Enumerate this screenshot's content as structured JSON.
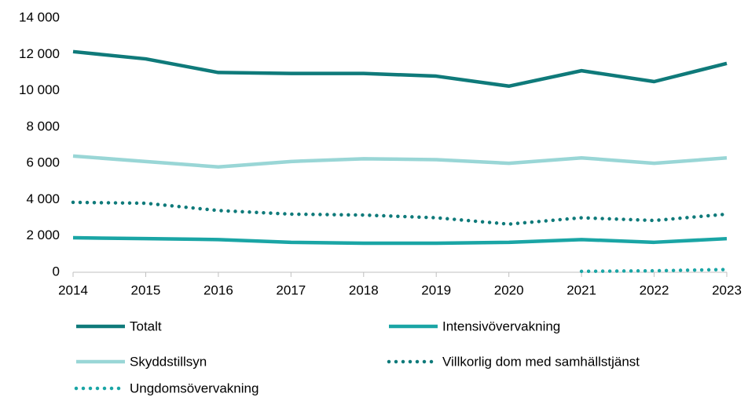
{
  "chart_data": {
    "type": "line",
    "x": [
      2014,
      2015,
      2016,
      2017,
      2018,
      2019,
      2020,
      2021,
      2022,
      2023
    ],
    "xlim": [
      2014,
      2023
    ],
    "xticks": [
      2014,
      2015,
      2016,
      2017,
      2018,
      2019,
      2020,
      2021,
      2022,
      2023
    ],
    "ylim": [
      0,
      14000
    ],
    "yticks": [
      0,
      {
        "value": 2000,
        "label": "2 000"
      },
      {
        "value": 4000,
        "label": "4 000"
      },
      {
        "value": 6000,
        "label": "6 000"
      },
      {
        "value": 8000,
        "label": "8 000"
      },
      {
        "value": 10000,
        "label": "10 000"
      },
      {
        "value": 12000,
        "label": "12 000"
      },
      {
        "value": 14000,
        "label": "14 000"
      }
    ],
    "grid": false,
    "series": [
      {
        "name": "Totalt",
        "color": "#0f7a7a",
        "linestyle": "solid",
        "values": [
          12150,
          11750,
          11000,
          10950,
          10950,
          10800,
          10250,
          11100,
          10500,
          11500
        ]
      },
      {
        "name": "Intensivövervakning",
        "color": "#1aa5a5",
        "linestyle": "solid",
        "values": [
          1900,
          1850,
          1800,
          1650,
          1600,
          1600,
          1650,
          1800,
          1650,
          1850
        ]
      },
      {
        "name": "Skyddstillsyn",
        "color": "#99d6d6",
        "linestyle": "solid",
        "values": [
          6400,
          6100,
          5800,
          6100,
          6250,
          6200,
          6000,
          6300,
          6000,
          6300
        ]
      },
      {
        "name": "Villkorlig dom med samhällstjänst",
        "color": "#0f7a7a",
        "linestyle": "dotted",
        "values": [
          3850,
          3800,
          3400,
          3200,
          3150,
          3000,
          2650,
          3000,
          2850,
          3200
        ]
      },
      {
        "name": "Ungdomsövervakning",
        "color": "#1aa5a5",
        "linestyle": "dotted",
        "values": [
          null,
          null,
          null,
          null,
          null,
          null,
          null,
          50,
          80,
          150
        ]
      }
    ]
  }
}
